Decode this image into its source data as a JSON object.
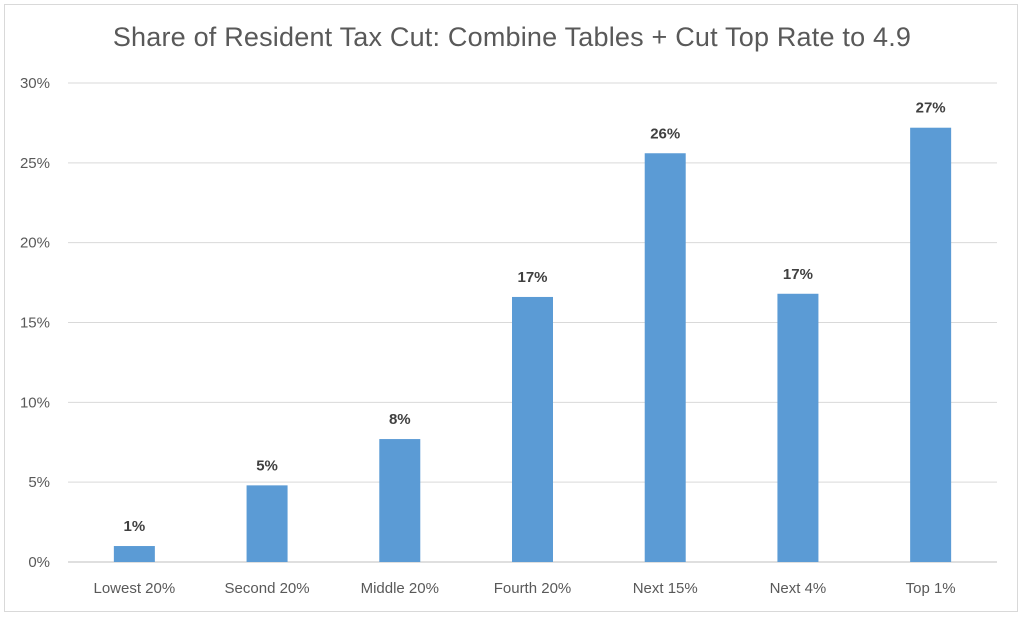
{
  "chart_data": {
    "type": "bar",
    "title": "Share of Resident Tax Cut: Combine Tables + Cut Top Rate to 4.9",
    "xlabel": "",
    "ylabel": "",
    "categories": [
      "Lowest 20%",
      "Second 20%",
      "Middle 20%",
      "Fourth 20%",
      "Next 15%",
      "Next 4%",
      "Top 1%"
    ],
    "values": [
      1.0,
      4.8,
      7.7,
      16.6,
      25.6,
      16.8,
      27.2
    ],
    "data_labels": [
      "1%",
      "5%",
      "8%",
      "17%",
      "26%",
      "17%",
      "27%"
    ],
    "ylim": [
      0,
      30
    ],
    "yticks": [
      0,
      5,
      10,
      15,
      20,
      25,
      30
    ],
    "ytick_labels": [
      "0%",
      "5%",
      "10%",
      "15%",
      "20%",
      "25%",
      "30%"
    ],
    "grid": true,
    "legend": "none",
    "bar_color": "#5b9bd5"
  }
}
